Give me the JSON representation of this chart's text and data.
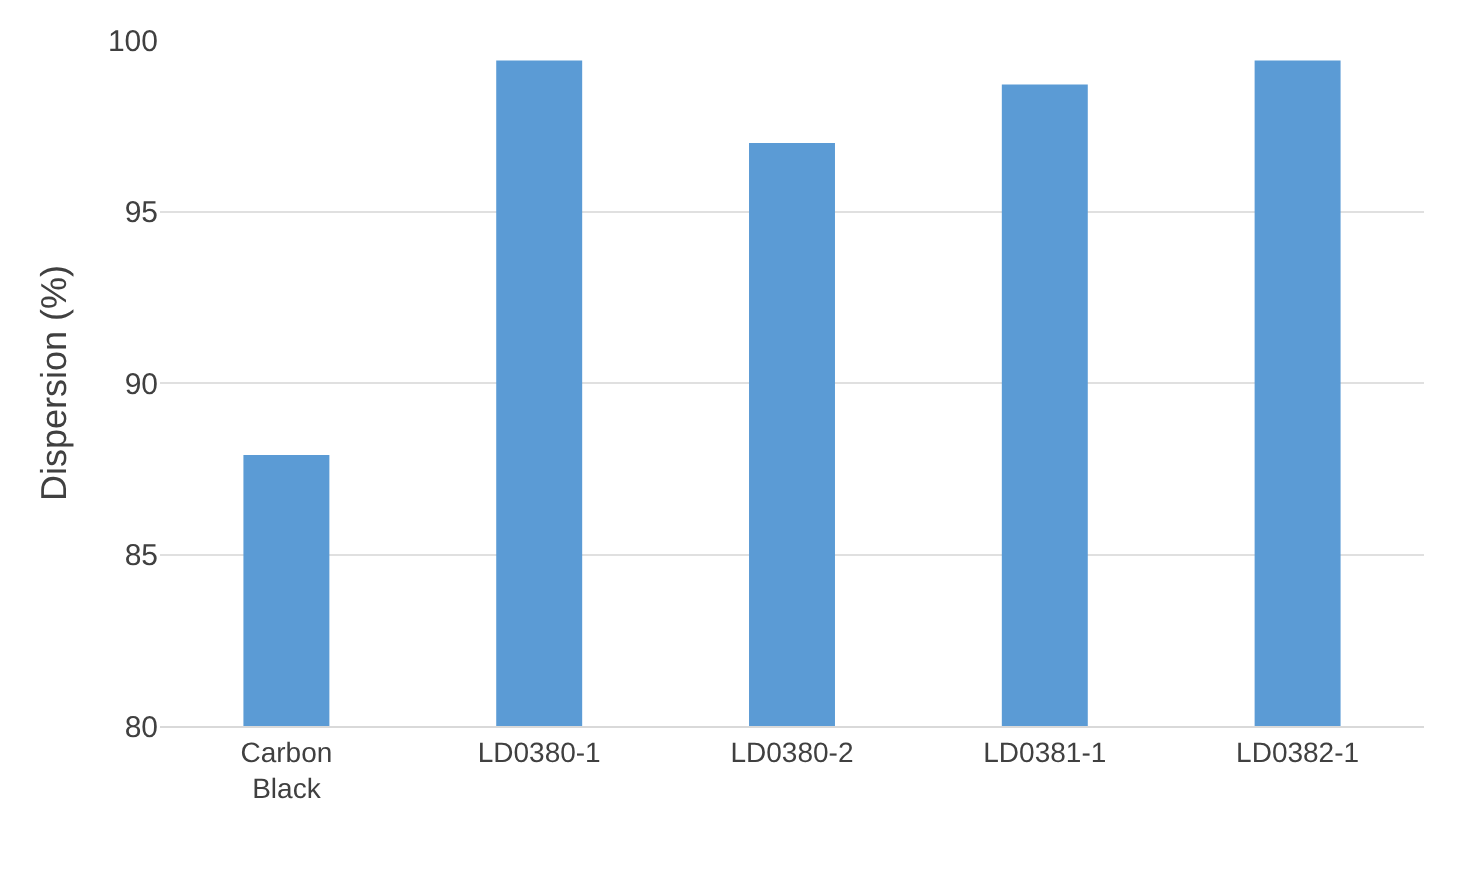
{
  "chart_data": {
    "type": "bar",
    "ylabel": "Dispersion (%)",
    "categories": [
      "Carbon\nBlack",
      "LD0380-1",
      "LD0380-2",
      "LD0381-1",
      "LD0382-1"
    ],
    "values": [
      87.9,
      99.4,
      97.0,
      98.7,
      99.4
    ],
    "color": "#5b9bd5",
    "ylim": [
      80,
      100
    ],
    "yticks": [
      80,
      85,
      90,
      95,
      100
    ],
    "grid": "y"
  }
}
